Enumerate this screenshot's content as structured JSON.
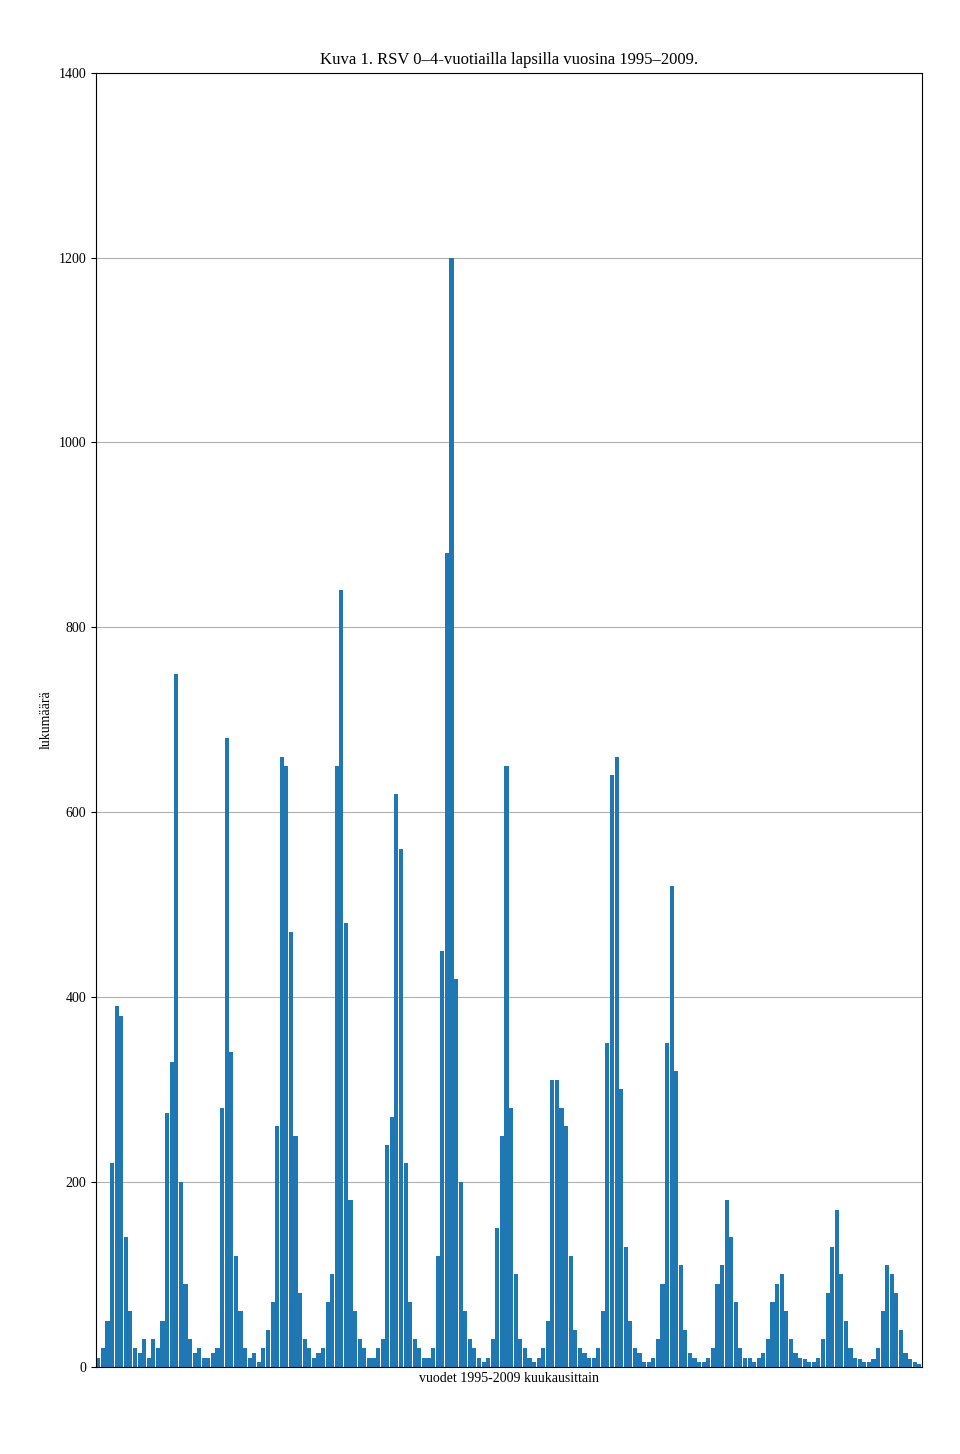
{
  "chart_data": {
    "type": "bar",
    "title": "Kuva 1. RSV 0–4-vuotiailla lapsilla vuosina 1995–2009.",
    "x_label": "vuodet 1995-2009 kuukausittain",
    "y_label": "lukumäärä",
    "categories": [
      null,
      null,
      null,
      null,
      null,
      null,
      null,
      null,
      null,
      null,
      null,
      null,
      null,
      null,
      null,
      null,
      null,
      null,
      null,
      null,
      null,
      null,
      null,
      null,
      null,
      null,
      null,
      null,
      null,
      null,
      null,
      null,
      null,
      null,
      null,
      null,
      null,
      null,
      null,
      null,
      null,
      null,
      null,
      null,
      null,
      null,
      null,
      null,
      null,
      null,
      null,
      null,
      null,
      null,
      null,
      null,
      null,
      null,
      null,
      null,
      null,
      null,
      null,
      null,
      null,
      null,
      null,
      null,
      null,
      null,
      null,
      null,
      null,
      null,
      null,
      null,
      null,
      null,
      null,
      null,
      null,
      null,
      null,
      null,
      null,
      null,
      null,
      null,
      null,
      null,
      null,
      null,
      null,
      null,
      null,
      null,
      null,
      null,
      null,
      null,
      null,
      null,
      null,
      null,
      null,
      null,
      null,
      null,
      null,
      null,
      null,
      null,
      null,
      null,
      null,
      null,
      null,
      null,
      null,
      null,
      null,
      null,
      null,
      null,
      null,
      null,
      null,
      null,
      null,
      null,
      null,
      null,
      null,
      null,
      null,
      null,
      null,
      null,
      null,
      null,
      null,
      null,
      null,
      null,
      null,
      null,
      null,
      null,
      null,
      null,
      null,
      null,
      null,
      null,
      null,
      null,
      null,
      null,
      null,
      null,
      null,
      null,
      null,
      null,
      null,
      null,
      null,
      null,
      null,
      null,
      null,
      null,
      null,
      null,
      null,
      null,
      null,
      null,
      null,
      null
    ],
    "values": [
      10,
      20,
      50,
      220,
      390,
      380,
      140,
      60,
      20,
      15,
      30,
      10,
      30,
      20,
      50,
      275,
      330,
      750,
      200,
      90,
      30,
      15,
      20,
      10,
      10,
      15,
      20,
      280,
      680,
      340,
      120,
      60,
      20,
      10,
      15,
      5,
      20,
      40,
      70,
      260,
      660,
      650,
      470,
      250,
      80,
      30,
      20,
      10,
      15,
      20,
      70,
      100,
      650,
      840,
      480,
      180,
      60,
      30,
      20,
      10,
      10,
      20,
      30,
      240,
      270,
      620,
      560,
      220,
      70,
      30,
      20,
      10,
      10,
      20,
      120,
      450,
      880,
      1200,
      420,
      200,
      60,
      30,
      20,
      10,
      5,
      10,
      30,
      150,
      250,
      650,
      280,
      100,
      30,
      20,
      10,
      5,
      10,
      20,
      50,
      310,
      310,
      280,
      260,
      120,
      40,
      20,
      15,
      10,
      10,
      20,
      60,
      350,
      640,
      660,
      300,
      130,
      50,
      20,
      15,
      5,
      5,
      10,
      30,
      90,
      350,
      520,
      320,
      110,
      40,
      15,
      10,
      5,
      5,
      10,
      20,
      90,
      110,
      180,
      140,
      70,
      20,
      10,
      10,
      5,
      10,
      15,
      30,
      70,
      90,
      100,
      60,
      30,
      15,
      10,
      8,
      5,
      5,
      10,
      30,
      80,
      130,
      170,
      100,
      50,
      20,
      10,
      8,
      5,
      5,
      8,
      20,
      60,
      110,
      100,
      80,
      40,
      15,
      8,
      5,
      3
    ],
    "ylim": [
      0,
      1400
    ],
    "yticks": [
      0,
      200,
      400,
      600,
      800,
      1000,
      1200,
      1400
    ],
    "grid": true,
    "tick_labels": "y"
  }
}
